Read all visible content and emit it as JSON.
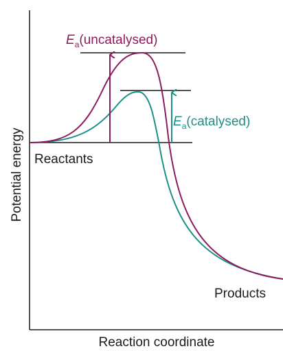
{
  "axes": {
    "y_label": "Potential energy",
    "x_label": "Reaction coordinate"
  },
  "levels": {
    "reactants": "Reactants",
    "products": "Products"
  },
  "activation": {
    "uncatalysed": {
      "symbol": "E",
      "subscript": "a",
      "text": "(uncatalysed)"
    },
    "catalysed": {
      "symbol": "E",
      "subscript": "a",
      "text": "(catalysed)"
    }
  }
}
